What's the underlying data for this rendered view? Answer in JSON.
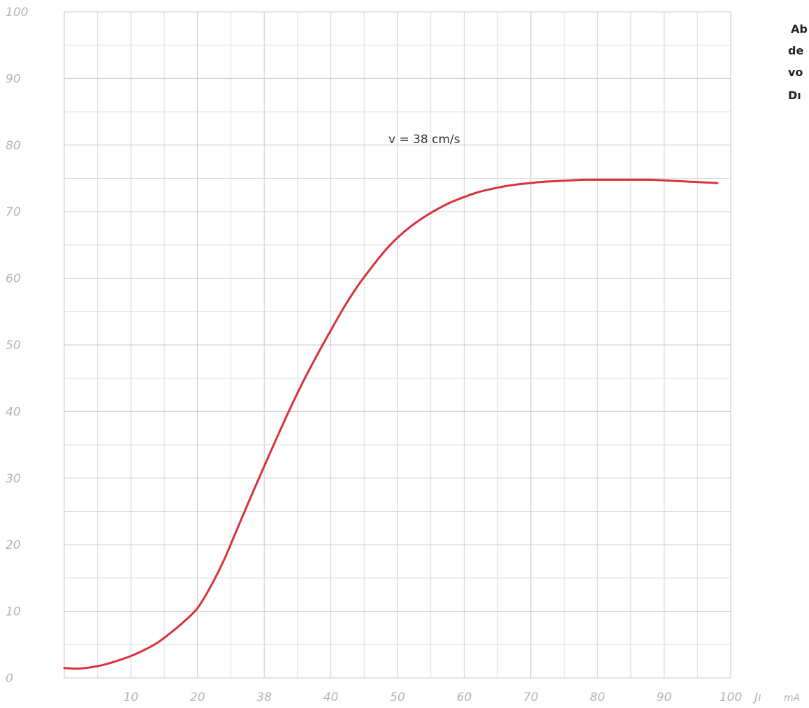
{
  "chart_data": {
    "type": "line",
    "title": "",
    "xlabel": "Jı",
    "xunit": "mA",
    "ylabel": "",
    "xlim": [
      0,
      100
    ],
    "ylim": [
      0,
      100
    ],
    "grid": true,
    "x_ticks": [
      "10",
      "20",
      "38",
      "40",
      "50",
      "60",
      "70",
      "80",
      "90",
      "100"
    ],
    "y_ticks": [
      "0",
      "10",
      "20",
      "30",
      "40",
      "50",
      "60",
      "70",
      "80",
      "90",
      "100"
    ],
    "annotation": "v = 38 cm/s",
    "side_text": [
      "Ab",
      "de",
      "vo",
      "Dı"
    ],
    "series": [
      {
        "color": "#d8323c",
        "x": [
          0,
          2,
          4,
          6,
          8,
          10,
          12,
          14,
          16,
          18,
          20,
          22,
          24,
          26,
          28,
          30,
          32,
          34,
          36,
          38,
          40,
          42,
          44,
          46,
          48,
          50,
          52,
          54,
          56,
          58,
          60,
          62,
          64,
          66,
          68,
          70,
          72,
          74,
          76,
          78,
          80,
          82,
          84,
          86,
          88,
          90,
          92,
          94,
          96,
          98
        ],
        "values": [
          1.5,
          1.4,
          1.6,
          2.0,
          2.6,
          3.3,
          4.2,
          5.3,
          6.8,
          8.5,
          10.5,
          13.8,
          17.8,
          22.5,
          27.2,
          31.8,
          36.3,
          40.7,
          44.8,
          48.6,
          52.2,
          55.7,
          58.8,
          61.5,
          64.0,
          66.1,
          67.8,
          69.2,
          70.4,
          71.4,
          72.2,
          72.9,
          73.4,
          73.8,
          74.1,
          74.3,
          74.5,
          74.6,
          74.7,
          74.8,
          74.8,
          74.8,
          74.8,
          74.8,
          74.8,
          74.7,
          74.6,
          74.5,
          74.4,
          74.3
        ]
      }
    ]
  }
}
